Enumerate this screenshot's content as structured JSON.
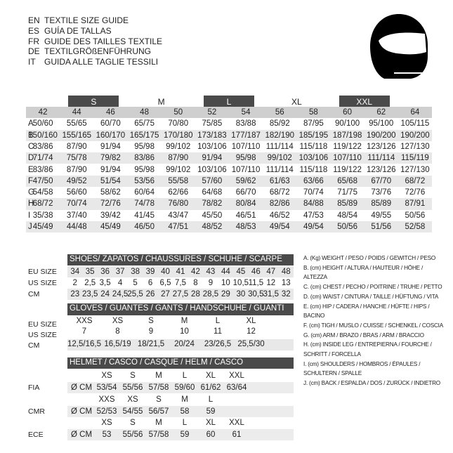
{
  "header": {
    "lines": [
      {
        "code": "EN",
        "title": "TEXTILE SIZE GUIDE"
      },
      {
        "code": "ES",
        "title": "GUÍA DE TALLAS"
      },
      {
        "code": "FR",
        "title": "GUIDE DES TAILLES TEXTILE"
      },
      {
        "code": "DE",
        "title": "TEXTILGRÖßENFÜHRUNG"
      },
      {
        "code": "IT",
        "title": "GUIDA ALLE TAGLIE TESSILI"
      }
    ]
  },
  "size_table": {
    "groups": [
      "S",
      "M",
      "L",
      "XL",
      "XXL"
    ],
    "sizes": [
      "42",
      "44",
      "46",
      "48",
      "50",
      "52",
      "54",
      "56",
      "58",
      "60",
      "62",
      "64"
    ],
    "rows": [
      {
        "label": "A",
        "values": [
          "50/60",
          "55/65",
          "60/70",
          "65/75",
          "70/80",
          "75/85",
          "83/88",
          "85/92",
          "87/95",
          "90/100",
          "95/100",
          "105/115"
        ]
      },
      {
        "label": "B",
        "values": [
          "150/160",
          "155/165",
          "160/170",
          "165/175",
          "170/180",
          "173/183",
          "177/187",
          "182/190",
          "185/195",
          "187/198",
          "190/200",
          "190/200"
        ]
      },
      {
        "label": "C",
        "values": [
          "83/86",
          "87/90",
          "91/94",
          "95/98",
          "99/102",
          "103/106",
          "107/110",
          "111/114",
          "115/118",
          "119/122",
          "123/126",
          "127/130"
        ]
      },
      {
        "label": "D",
        "values": [
          "71/74",
          "75/78",
          "79/82",
          "83/86",
          "87/90",
          "91/94",
          "95/98",
          "99/102",
          "103/106",
          "107/110",
          "111/114",
          "115/119"
        ]
      },
      {
        "label": "E",
        "values": [
          "83/86",
          "87/90",
          "91/94",
          "95/98",
          "99/102",
          "103/106",
          "107/110",
          "111/114",
          "115/118",
          "119/122",
          "123/126",
          "127/130"
        ]
      },
      {
        "label": "F",
        "values": [
          "47/50",
          "49/52",
          "51/54",
          "53/56",
          "55/58",
          "57/60",
          "59/62",
          "61/63",
          "63/66",
          "65/68",
          "67/70",
          "68/72"
        ]
      },
      {
        "label": "G",
        "values": [
          "54/58",
          "56/60",
          "58/62",
          "60/64",
          "62/66",
          "64/68",
          "66/70",
          "68/72",
          "70/74",
          "71/75",
          "73/76",
          "72/76"
        ]
      },
      {
        "label": "H",
        "values": [
          "68/72",
          "70/74",
          "72/76",
          "74/78",
          "76/80",
          "78/82",
          "80/84",
          "82/86",
          "84/88",
          "85/89",
          "85/89",
          "87/91"
        ]
      },
      {
        "label": "I",
        "values": [
          "35/38",
          "37/40",
          "39/42",
          "41/45",
          "43/47",
          "45/50",
          "46/51",
          "46/52",
          "47/53",
          "48/54",
          "49/55",
          "50/56"
        ]
      },
      {
        "label": "J",
        "values": [
          "45/49",
          "44/48",
          "45/49",
          "46/50",
          "47/51",
          "48/52",
          "48/53",
          "49/54",
          "49/54",
          "50/56",
          "51/56",
          "52/58"
        ]
      }
    ]
  },
  "shoes": {
    "title": "SHOES/ ZAPATOS / CHAUSSURES / SCHUHE / SCARPE",
    "rows": [
      {
        "label": "EU SIZE",
        "values": [
          "34",
          "35",
          "36",
          "37",
          "38",
          "39",
          "40",
          "41",
          "42",
          "43",
          "44",
          "45",
          "46",
          "47",
          "48"
        ]
      },
      {
        "label": "US SIZE",
        "values": [
          "2",
          "2,5",
          "3,5",
          "4",
          "5",
          "6",
          "6,5",
          "7,5",
          "8",
          "9",
          "10",
          "10,5",
          "11,5",
          "12",
          "13"
        ]
      },
      {
        "label": "CM",
        "values": [
          "23",
          "23,5",
          "24",
          "24,5",
          "25,5",
          "26",
          "27",
          "27,5",
          "28",
          "28,5",
          "29",
          "30",
          "30,5",
          "31,5",
          "32"
        ]
      }
    ]
  },
  "gloves": {
    "title": "GLOVES / GUANTES / GANTS / HANDSCHUHE / GUANTI",
    "rows": [
      {
        "label": "EU SIZE",
        "values": [
          "XXS",
          "XS",
          "S",
          "M",
          "L",
          "XL"
        ]
      },
      {
        "label": "US SIZE",
        "values": [
          "7",
          "8",
          "9",
          "10",
          "11",
          "12"
        ]
      },
      {
        "label": "CM",
        "values": [
          "12,5/16,5",
          "16,5/19",
          "18/21,5",
          "20/24",
          "23/26,5",
          "25,5/30"
        ]
      }
    ]
  },
  "helmet": {
    "title": "HELMET / CASCO / CASQUE / HELM / CASCO",
    "standards": [
      {
        "label": "FIA",
        "sizes": [
          "XS",
          "S",
          "M",
          "L",
          "XL",
          "XXL"
        ],
        "unit": "Ø CM",
        "values": [
          "53/54",
          "55/56",
          "57/58",
          "59/60",
          "61/62",
          "63/64"
        ]
      },
      {
        "label": "CMR",
        "sizes": [
          "XXS",
          "XS",
          "S",
          "M",
          "L"
        ],
        "unit": "Ø CM",
        "values": [
          "52/53",
          "54/55",
          "56/57",
          "58",
          "59"
        ]
      },
      {
        "label": "ECE",
        "sizes": [
          "XS",
          "S",
          "M",
          "L",
          "XL",
          "XXL"
        ],
        "unit": "Ø CM",
        "values": [
          "53",
          "55/56",
          "57/58",
          "59",
          "60",
          "61"
        ]
      }
    ]
  },
  "legend": [
    "A. (Kg) WEIGHT / PESO / POIDS / GEWITCH / PESO",
    "B. (cm) HEIGHT / ALTURA / HAUTEUR / HÖHE / ALTEZZA",
    "C. (cm) CHEST / PECHO / POITRINE / TRUHE / PETTO",
    "D. (cm) WAIST / CINTURA / TAILLE / HÜFTUNG / VITA",
    "E. (cm) HIP / CADERA / HANCHE / HÜFTE / HIPS / BACINO",
    "F. (cm) TIGH / MUSLO / CUISSE / SCHENKEL / COSCIA",
    "G. (cm) ARM / BRAZO / BRAS / ARM / BRACCIO",
    "H. (cm) INSIDE LEG / ENTREPIERNA / FOURCHE / SCHRITT / FORCELLA",
    "I. (cm) SHOULDERS / HOMBROS / ÉPAULES / SCHULTERN / SPALLE",
    "J. (cm) BACK / ESPALDA / DOS / ZURÜCK / INDIETRO"
  ]
}
